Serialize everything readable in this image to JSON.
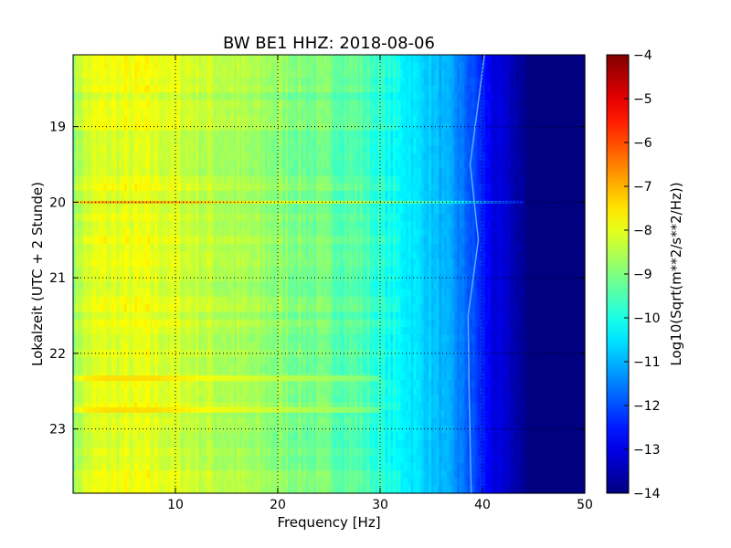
{
  "chart_data": {
    "type": "heatmap",
    "title": "BW BE1 HHZ: 2018-08-06",
    "xlabel": "Frequency [Hz]",
    "ylabel": "Lokalzeit (UTC + 2 Stunde)",
    "colorbar_label": "Log10(Sqrt(m**2/s**2/Hz))",
    "xlim": [
      0,
      50
    ],
    "ylim": [
      18.05,
      23.85
    ],
    "y_inverted": true,
    "x_ticks": [
      10,
      20,
      30,
      40,
      50
    ],
    "y_ticks": [
      19,
      20,
      21,
      22,
      23
    ],
    "color_range": [
      -14,
      -4
    ],
    "colorbar_ticks": [
      -4,
      -5,
      -6,
      -7,
      -8,
      -9,
      -10,
      -11,
      -12,
      -13,
      -14
    ],
    "colormap": "jet",
    "grid": true,
    "frequency_profile": [
      {
        "freq": 0,
        "value": -8.8
      },
      {
        "freq": 1,
        "value": -8.2
      },
      {
        "freq": 3,
        "value": -8.0
      },
      {
        "freq": 8,
        "value": -8.0
      },
      {
        "freq": 15,
        "value": -8.5
      },
      {
        "freq": 22,
        "value": -9.0
      },
      {
        "freq": 28,
        "value": -9.4
      },
      {
        "freq": 30.5,
        "value": -10.0
      },
      {
        "freq": 34,
        "value": -10.6
      },
      {
        "freq": 37,
        "value": -11.2
      },
      {
        "freq": 39.5,
        "value": -12.2
      },
      {
        "freq": 41,
        "value": -13.0
      },
      {
        "freq": 43.5,
        "value": -13.6
      },
      {
        "freq": 44.5,
        "value": -14.0
      },
      {
        "freq": 50,
        "value": -14.0
      }
    ],
    "features": [
      {
        "kind": "horizontal-line",
        "time": 20.0,
        "freq_end": 44,
        "value_offset": 1.2
      },
      {
        "kind": "horizontal-band",
        "time": 22.33,
        "freq_end": 30,
        "value_offset": 0.6
      },
      {
        "kind": "horizontal-band",
        "time": 22.75,
        "freq_end": 30,
        "value_offset": 0.6
      },
      {
        "kind": "drifting-line",
        "points": [
          [
            40.2,
            18.05
          ],
          [
            38.8,
            19.5
          ],
          [
            39.6,
            20.5
          ],
          [
            38.6,
            21.5
          ],
          [
            38.7,
            22.5
          ],
          [
            38.9,
            23.85
          ]
        ]
      }
    ]
  }
}
